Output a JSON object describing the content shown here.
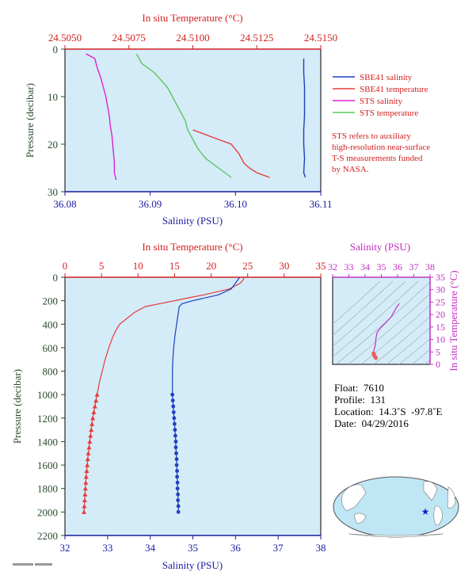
{
  "colors": {
    "plot_bg": "#d3ecf8",
    "sbe_salinity": "#1f3fbf",
    "sbe_temperature": "#e83a3a",
    "sts_salinity": "#e020d0",
    "sts_temperature": "#5cc65c",
    "temp_axis": "#d42020",
    "sal_axis": "#1a1aa0",
    "pressure_axis": "#2a4a2a",
    "ts_axis": "#c030c0"
  },
  "chart_data": [
    {
      "type": "line",
      "panel": "top-detail",
      "title": "",
      "top_axis_label": "In situ Temperature (°C)",
      "top_ticks": [
        "24.5050",
        "24.5075",
        "24.5100",
        "24.5125",
        "24.5150"
      ],
      "top_lim": [
        24.505,
        24.515
      ],
      "bottom_axis_label": "Salinity (PSU)",
      "bottom_ticks": [
        "36.08",
        "36.09",
        "36.10",
        "36.11"
      ],
      "bottom_lim": [
        36.08,
        36.11
      ],
      "ylabel": "Pressure (decibar)",
      "y_ticks": [
        "0",
        "10",
        "20",
        "30"
      ],
      "ylim": [
        30,
        0
      ],
      "legend_position": "right",
      "legend": [
        {
          "label": "SBE41 salinity",
          "color": "#1f3fbf"
        },
        {
          "label": "SBE41 temperature",
          "color": "#e83a3a"
        },
        {
          "label": "STS salinity",
          "color": "#e020d0"
        },
        {
          "label": "STS temperature",
          "color": "#5cc65c"
        }
      ],
      "note_lines": [
        "STS refers to auxiliary",
        "high-resolution near-surface",
        "T-S measurements funded",
        "by NASA."
      ],
      "series": [
        {
          "name": "STS salinity",
          "axis": "salinity",
          "pressure": [
            1,
            2,
            4,
            6,
            8,
            10,
            12,
            14,
            16,
            18,
            20,
            22,
            24,
            26,
            27.5
          ],
          "values": [
            36.0825,
            36.0835,
            36.0838,
            36.0842,
            36.0845,
            36.0848,
            36.085,
            36.0852,
            36.0853,
            36.0855,
            36.0856,
            36.0857,
            36.0858,
            36.0858,
            36.086
          ]
        },
        {
          "name": "STS temperature",
          "axis": "temperature",
          "pressure": [
            1,
            3,
            5,
            8,
            10,
            13,
            15,
            17,
            19,
            21,
            23,
            25,
            27
          ],
          "values": [
            24.5078,
            24.508,
            24.5085,
            24.509,
            24.5092,
            24.5095,
            24.5097,
            24.5098,
            24.51,
            24.5102,
            24.5105,
            24.511,
            24.5115
          ]
        },
        {
          "name": "SBE41 temperature",
          "axis": "temperature",
          "pressure": [
            17,
            18,
            19,
            20,
            22,
            24,
            25,
            26,
            27
          ],
          "values": [
            24.51,
            24.5105,
            24.511,
            24.5115,
            24.5118,
            24.512,
            24.5122,
            24.5125,
            24.513
          ]
        },
        {
          "name": "SBE41 salinity",
          "axis": "salinity",
          "pressure": [
            2,
            5,
            8,
            11,
            14,
            17,
            20,
            23,
            26,
            27
          ],
          "values": [
            36.108,
            36.108,
            36.1081,
            36.1081,
            36.1081,
            36.108,
            36.108,
            36.1081,
            36.108,
            36.1082
          ]
        }
      ]
    },
    {
      "type": "line",
      "panel": "profile",
      "top_axis_label": "In situ Temperature (°C)",
      "top_ticks": [
        "0",
        "5",
        "10",
        "15",
        "20",
        "25",
        "30",
        "35"
      ],
      "top_lim": [
        0,
        35
      ],
      "bottom_axis_label": "Salinity (PSU)",
      "bottom_ticks": [
        "32",
        "33",
        "34",
        "35",
        "36",
        "37",
        "38"
      ],
      "bottom_lim": [
        32,
        38
      ],
      "ylabel": "Pressure (decibar)",
      "y_ticks": [
        "0",
        "200",
        "400",
        "600",
        "800",
        "1000",
        "1200",
        "1400",
        "1600",
        "1800",
        "2000",
        "2200"
      ],
      "ylim": [
        2200,
        0
      ],
      "series": [
        {
          "name": "Temperature",
          "axis": "temperature",
          "pressure": [
            0,
            20,
            50,
            100,
            150,
            200,
            225,
            250,
            300,
            350,
            400,
            450,
            500,
            600,
            700,
            800,
            900,
            1000
          ],
          "values": [
            24.5,
            24.4,
            24.0,
            22.5,
            19.0,
            15.0,
            13.0,
            11.0,
            9.5,
            8.5,
            7.5,
            7.0,
            6.6,
            6.0,
            5.5,
            5.1,
            4.7,
            4.4
          ],
          "marked_pressure": [
            1000,
            1050,
            1100,
            1150,
            1200,
            1250,
            1300,
            1350,
            1400,
            1450,
            1500,
            1550,
            1600,
            1650,
            1700,
            1750,
            1800,
            1850,
            1900,
            1950,
            2000
          ],
          "marked_values": [
            4.4,
            4.25,
            4.1,
            3.95,
            3.8,
            3.7,
            3.6,
            3.5,
            3.4,
            3.3,
            3.2,
            3.12,
            3.05,
            2.98,
            2.9,
            2.85,
            2.8,
            2.75,
            2.7,
            2.65,
            2.6
          ]
        },
        {
          "name": "Salinity",
          "axis": "salinity",
          "pressure": [
            0,
            50,
            100,
            150,
            200,
            225,
            250,
            300,
            400,
            500,
            600,
            700,
            800,
            900,
            1000
          ],
          "values": [
            36.1,
            36.0,
            35.9,
            35.6,
            35.0,
            34.75,
            34.68,
            34.66,
            34.62,
            34.58,
            34.55,
            34.53,
            34.52,
            34.52,
            34.52
          ],
          "marked_pressure": [
            1000,
            1050,
            1100,
            1150,
            1200,
            1250,
            1300,
            1350,
            1400,
            1450,
            1500,
            1550,
            1600,
            1650,
            1700,
            1750,
            1800,
            1850,
            1900,
            1950,
            2000
          ],
          "marked_values": [
            34.52,
            34.53,
            34.54,
            34.55,
            34.56,
            34.57,
            34.58,
            34.59,
            34.6,
            34.6,
            34.61,
            34.62,
            34.62,
            34.63,
            34.63,
            34.64,
            34.64,
            34.65,
            34.65,
            34.66,
            34.66
          ]
        }
      ]
    },
    {
      "type": "line",
      "panel": "ts-diagram",
      "top_axis_label": "Salinity (PSU)",
      "top_ticks": [
        "32",
        "33",
        "34",
        "35",
        "36",
        "37",
        "38"
      ],
      "top_lim": [
        32,
        38
      ],
      "right_axis_label": "In situ Temperature (°C)",
      "right_ticks": [
        "0",
        "5",
        "10",
        "15",
        "20",
        "25",
        "30",
        "35"
      ],
      "right_lim": [
        0,
        35
      ],
      "series": [
        {
          "name": "T-S curve",
          "salinity": [
            36.1,
            35.9,
            35.6,
            35.0,
            34.75,
            34.68,
            34.62,
            34.58,
            34.55,
            34.52,
            34.55,
            34.6,
            34.66
          ],
          "temperature": [
            24.5,
            22.5,
            19.0,
            15.0,
            13.0,
            11.0,
            7.5,
            6.6,
            6.0,
            4.4,
            3.8,
            3.2,
            2.6
          ]
        }
      ]
    }
  ],
  "info": {
    "float_label": "Float:",
    "float_value": "7610",
    "profile_label": "Profile:",
    "profile_value": "131",
    "location_label": "Location:",
    "location_value": "14.3˚S  -97.8˚E",
    "date_label": "Date:",
    "date_value": "04/29/2016"
  },
  "map": {
    "icon": "world-map-icon",
    "marker": "float-location-star-icon"
  }
}
